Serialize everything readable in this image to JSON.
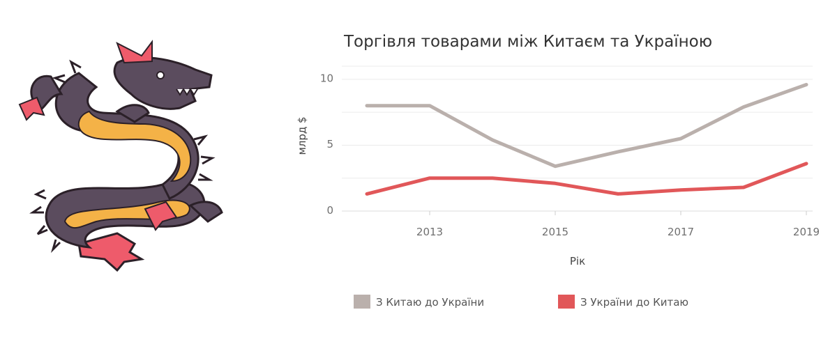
{
  "chart_data": {
    "type": "line",
    "title": "Торгівля товарами між Китаєм та Україною",
    "xlabel": "Рік",
    "ylabel": "млрд $",
    "x": [
      2012,
      2013,
      2014,
      2015,
      2016,
      2017,
      2018,
      2019
    ],
    "x_ticks": [
      "2013",
      "2015",
      "2017",
      "2019"
    ],
    "y_ticks": [
      "0",
      "5",
      "10"
    ],
    "ylim": [
      0,
      11
    ],
    "grid": true,
    "legend_position": "bottom",
    "series": [
      {
        "name": "З Китаю до України",
        "color": "#bab0ac",
        "values": [
          8,
          8,
          5.4,
          3.4,
          4.5,
          5.5,
          7.9,
          9.6
        ]
      },
      {
        "name": "З України до Китаю",
        "color": "#e15759",
        "values": [
          1.3,
          2.5,
          2.5,
          2.1,
          1.3,
          1.6,
          1.8,
          3.6
        ]
      }
    ]
  },
  "illustration": {
    "name": "dragon",
    "colors": {
      "body": "#5b4c5e",
      "belly": "#f4b247",
      "fins": "#ee5b6b",
      "outline": "#2b2028"
    }
  }
}
